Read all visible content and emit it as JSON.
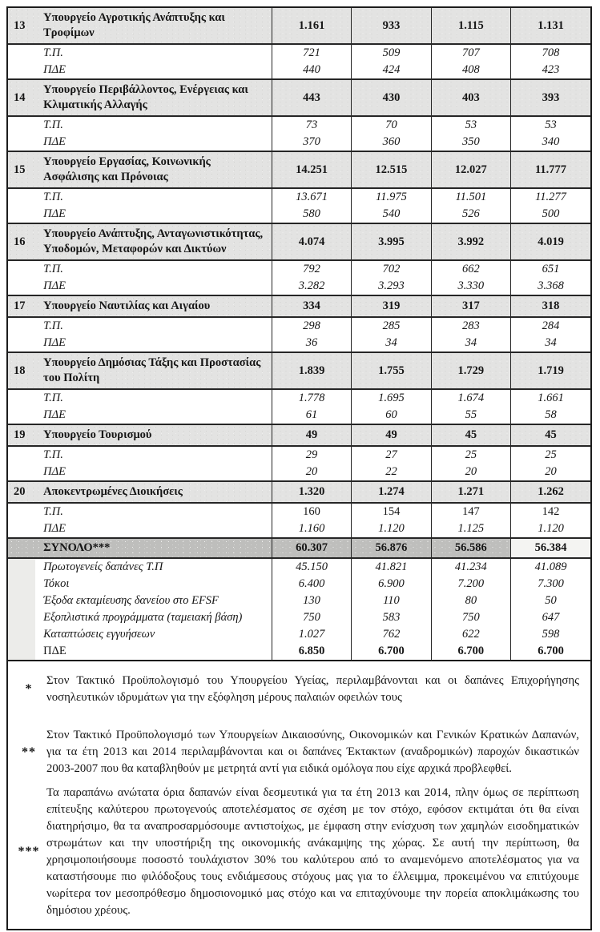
{
  "document": {
    "kind": "scanned-budget-table-page",
    "language": "el"
  },
  "colors": {
    "ministry_row_bg": "#e3e3e2",
    "total_row_bg": "#bebebc",
    "border": "#1c1c1c",
    "text": "#161616"
  },
  "table": {
    "sub_labels": {
      "tp": "Τ.Π.",
      "pde": "ΠΔΕ"
    },
    "rows": [
      {
        "num": "13",
        "name": "Υπουργείο Αγροτικής Ανάπτυξης και Τροφίμων",
        "values": [
          "1.161",
          "933",
          "1.115",
          "1.131"
        ],
        "tp": [
          "721",
          "509",
          "707",
          "708"
        ],
        "pde": [
          "440",
          "424",
          "408",
          "423"
        ]
      },
      {
        "num": "14",
        "name": "Υπουργείο Περιβάλλοντος, Ενέργειας και Κλιματικής Αλλαγής",
        "values": [
          "443",
          "430",
          "403",
          "393"
        ],
        "tp": [
          "73",
          "70",
          "53",
          "53"
        ],
        "pde": [
          "370",
          "360",
          "350",
          "340"
        ]
      },
      {
        "num": "15",
        "name": "Υπουργείο Εργασίας, Κοινωνικής Ασφάλισης και Πρόνοιας",
        "values": [
          "14.251",
          "12.515",
          "12.027",
          "11.777"
        ],
        "tp": [
          "13.671",
          "11.975",
          "11.501",
          "11.277"
        ],
        "pde": [
          "580",
          "540",
          "526",
          "500"
        ]
      },
      {
        "num": "16",
        "name": "Υπουργείο Ανάπτυξης, Ανταγωνιστικότητας, Υποδομών, Μεταφορών και Δικτύων",
        "values": [
          "4.074",
          "3.995",
          "3.992",
          "4.019"
        ],
        "tp": [
          "792",
          "702",
          "662",
          "651"
        ],
        "pde": [
          "3.282",
          "3.293",
          "3.330",
          "3.368"
        ]
      },
      {
        "num": "17",
        "name": "Υπουργείο Ναυτιλίας και Αιγαίου",
        "values": [
          "334",
          "319",
          "317",
          "318"
        ],
        "tp": [
          "298",
          "285",
          "283",
          "284"
        ],
        "pde": [
          "36",
          "34",
          "34",
          "34"
        ]
      },
      {
        "num": "18",
        "name": "Υπουργείο Δημόσιας Τάξης και Προστασίας του Πολίτη",
        "values": [
          "1.839",
          "1.755",
          "1.729",
          "1.719"
        ],
        "tp": [
          "1.778",
          "1.695",
          "1.674",
          "1.661"
        ],
        "pde": [
          "61",
          "60",
          "55",
          "58"
        ]
      },
      {
        "num": "19",
        "name": "Υπουργείο Τουρισμού",
        "values": [
          "49",
          "49",
          "45",
          "45"
        ],
        "tp": [
          "29",
          "27",
          "25",
          "25"
        ],
        "pde": [
          "20",
          "22",
          "20",
          "20"
        ]
      },
      {
        "num": "20",
        "name": "Αποκεντρωμένες Διοικήσεις",
        "values": [
          "1.320",
          "1.274",
          "1.271",
          "1.262"
        ],
        "tp": [
          "160",
          "154",
          "147",
          "142"
        ],
        "tp_upright": true,
        "pde": [
          "1.160",
          "1.120",
          "1.125",
          "1.120"
        ]
      }
    ],
    "total": {
      "label": "ΣΥΝΟΛΟ***",
      "values": [
        "60.307",
        "56.876",
        "56.586",
        "56.384"
      ]
    },
    "summary": [
      {
        "label": "Πρωτογενείς δαπάνες Τ.Π",
        "values": [
          "45.150",
          "41.821",
          "41.234",
          "41.089"
        ]
      },
      {
        "label": "Τόκοι",
        "values": [
          "6.400",
          "6.900",
          "7.200",
          "7.300"
        ]
      },
      {
        "label": "Έξοδα εκταμίευσης  δανείου στο EFSF",
        "values": [
          "130",
          "110",
          "80",
          "50"
        ]
      },
      {
        "label": "Εξοπλιστικά προγράμματα (ταμειακή βάση)",
        "values": [
          "750",
          "583",
          "750",
          "647"
        ]
      },
      {
        "label": "Καταπτώσεις εγγυήσεων",
        "values": [
          "1.027",
          "762",
          "622",
          "598"
        ]
      },
      {
        "label": "ΠΔΕ",
        "values": [
          "6.850",
          "6.700",
          "6.700",
          "6.700"
        ],
        "final": true
      }
    ]
  },
  "footnotes": [
    {
      "marker": "*",
      "text": "Στον Τακτικό Προϋπολογισμό του Υπουργείου Υγείας, περιλαμβάνονται και οι δαπάνες Επιχορήγησης νοσηλευτικών ιδρυμάτων για την εξόφληση μέρους  παλαιών οφειλών τους"
    },
    {
      "marker": "**",
      "text": "Στον Τακτικό Προϋπολογισμό των Υπουργείων Δικαιοσύνης, Οικονομικών και Γενικών Κρατικών Δαπανών, για τα έτη 2013 και 2014 περιλαμβάνονται και οι δαπάνες Έκτακτων (αναδρομικών) παροχών δικαστικών 2003-2007 που θα καταβληθούν με μετρητά αντί για ειδικά ομόλογα που είχε αρχικά προβλεφθεί."
    },
    {
      "marker": "***",
      "text": "Τα παραπάνω ανώτατα όρια δαπανών είναι δεσμευτικά για τα έτη 2013 και 2014, πλην όμως σε περίπτωση επίτευξης καλύτερου πρωτογενούς αποτελέσματος σε σχέση με τον στόχο, εφόσον εκτιμάται ότι θα είναι διατηρήσιμο, θα τα αναπροσαρμόσουμε αντιστοίχως, με έμφαση στην ενίσχυση των χαμηλών εισοδηματικών στρωμάτων και την υποστήριξη της οικονομικής ανάκαμψης της χώρας. Σε αυτή την περίπτωση, θα χρησιμοποιήσουμε ποσοστό τουλάχιστον 30% του καλύτερου από το αναμενόμενο αποτελέσματος για να καταστήσουμε πιο φιλόδοξους τους ενδιάμεσους στόχους μας για το έλλειμμα, προκειμένου να επιτύχουμε νωρίτερα τον μεσοπρόθεσμο δημοσιονομικό μας στόχο και να επιταχύνουμε την πορεία αποκλιμάκωσης του δημόσιου χρέους."
    }
  ]
}
